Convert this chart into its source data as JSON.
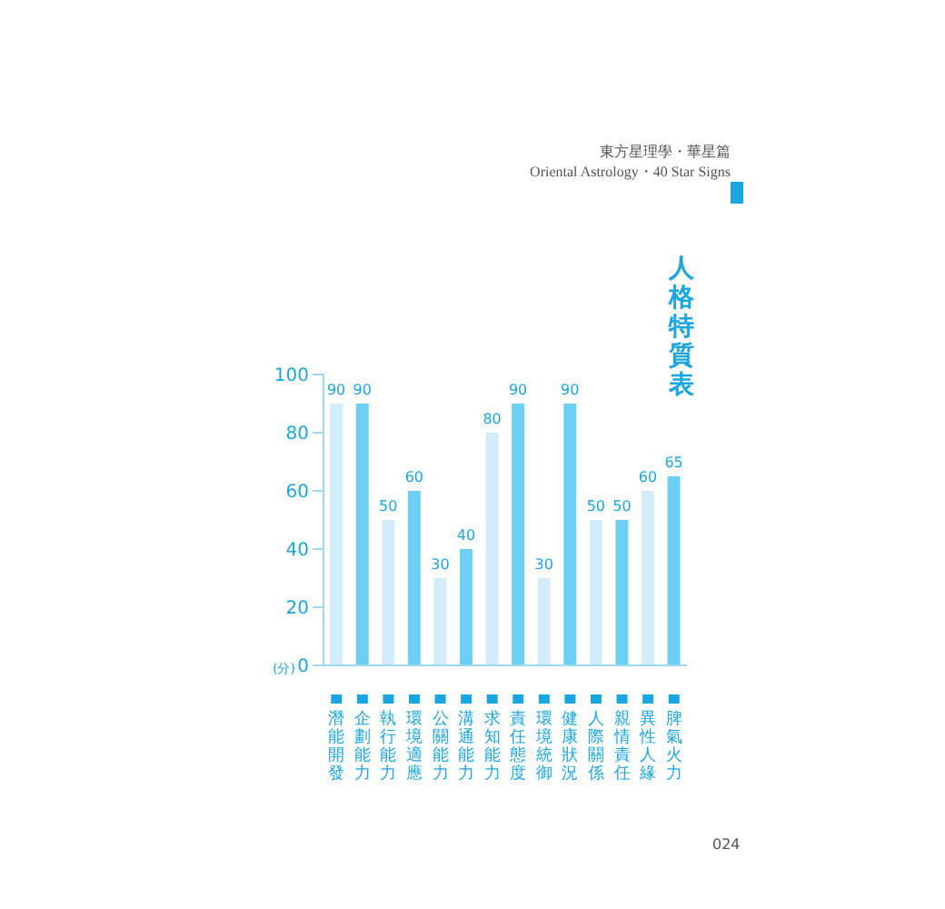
{
  "chart_data": {
    "type": "bar",
    "title": "人格特質表",
    "ylabel": "(分)",
    "categories": [
      "潛能開發",
      "企劃能力",
      "執行能力",
      "環境適應",
      "公關能力",
      "溝通能力",
      "求知能力",
      "責任態度",
      "環境統御",
      "健康狀況",
      "人際關係",
      "親情責任",
      "異性人緣",
      "脾氣火力"
    ],
    "values": [
      90,
      90,
      50,
      60,
      30,
      40,
      80,
      90,
      30,
      90,
      50,
      50,
      60,
      65
    ],
    "colors": [
      "#d2ecf9",
      "#6ecff5",
      "#d2ecf9",
      "#6ecff5",
      "#d2ecf9",
      "#6ecff5",
      "#d2ecf9",
      "#6ecff5",
      "#d2ecf9",
      "#6ecff5",
      "#d2ecf9",
      "#6ecff5",
      "#d2ecf9",
      "#6ecff5"
    ],
    "ylim": [
      0,
      100
    ],
    "yticks": [
      0,
      20,
      40,
      60,
      80,
      100
    ],
    "data_labels": true,
    "annotations": [
      "東方星理學・華星篇",
      "Oriental Astrology・40 Star Signs",
      "024"
    ]
  }
}
